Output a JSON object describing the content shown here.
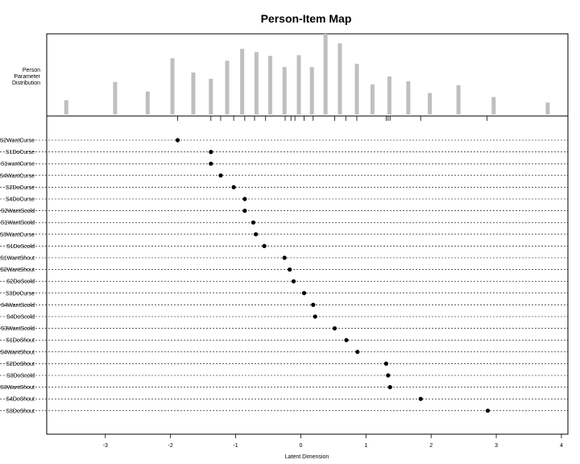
{
  "chart_data": {
    "type": "scatter",
    "title": "Person-Item Map",
    "xlabel": "Latent Dimension",
    "person_label": [
      "Person",
      "Parameter",
      "Distribution"
    ],
    "xlim": [
      -3.9,
      4.1
    ],
    "xticks": [
      -3,
      -2,
      -1,
      0,
      1,
      2,
      3,
      4
    ],
    "grid": false,
    "person_distribution": {
      "x": [
        -3.6,
        -2.85,
        -2.35,
        -1.97,
        -1.65,
        -1.38,
        -1.13,
        -0.9,
        -0.68,
        -0.47,
        -0.25,
        -0.03,
        0.17,
        0.38,
        0.6,
        0.86,
        1.1,
        1.36,
        1.65,
        1.98,
        2.42,
        2.96,
        3.79
      ],
      "counts": [
        18,
        41,
        29,
        71,
        53,
        45,
        68,
        83,
        79,
        74,
        60,
        75,
        60,
        102,
        90,
        64,
        38,
        48,
        42,
        27,
        37,
        22,
        15
      ]
    },
    "item_ticks": [
      -1.89,
      -1.38,
      -1.23,
      -1.03,
      -0.86,
      -0.71,
      -0.54,
      -0.24,
      -0.15,
      -0.09,
      0.05,
      0.19,
      0.52,
      0.69,
      0.86,
      1.31,
      1.34,
      1.37,
      1.84,
      2.86
    ],
    "items": [
      {
        "label": "S2WantCurse",
        "value": -1.89
      },
      {
        "label": "S1DoCurse",
        "value": -1.38
      },
      {
        "label": "S1wantCurse",
        "value": -1.38
      },
      {
        "label": "S4WantCurse",
        "value": -1.23
      },
      {
        "label": "S2DoCurse",
        "value": -1.03
      },
      {
        "label": "S4DoCurse",
        "value": -0.86
      },
      {
        "label": "S2WantScold",
        "value": -0.86
      },
      {
        "label": "S1WantScold",
        "value": -0.73
      },
      {
        "label": "S3WantCurse",
        "value": -0.69
      },
      {
        "label": "S1DoScold",
        "value": -0.56
      },
      {
        "label": "S1WantShout",
        "value": -0.25
      },
      {
        "label": "S2WantShout",
        "value": -0.17
      },
      {
        "label": "S2DoScold",
        "value": -0.11
      },
      {
        "label": "S3DoCurse",
        "value": 0.05
      },
      {
        "label": "S4WantScold",
        "value": 0.19
      },
      {
        "label": "S4DoScold",
        "value": 0.22
      },
      {
        "label": "S3WantScold",
        "value": 0.52
      },
      {
        "label": "S1DoShout",
        "value": 0.7
      },
      {
        "label": "S4WantShout",
        "value": 0.87
      },
      {
        "label": "S2DoShout",
        "value": 1.31
      },
      {
        "label": "S3DoScold",
        "value": 1.34
      },
      {
        "label": "S3WantShout",
        "value": 1.37
      },
      {
        "label": "S4DoShout",
        "value": 1.84
      },
      {
        "label": "S3DoShout",
        "value": 2.87
      }
    ]
  }
}
